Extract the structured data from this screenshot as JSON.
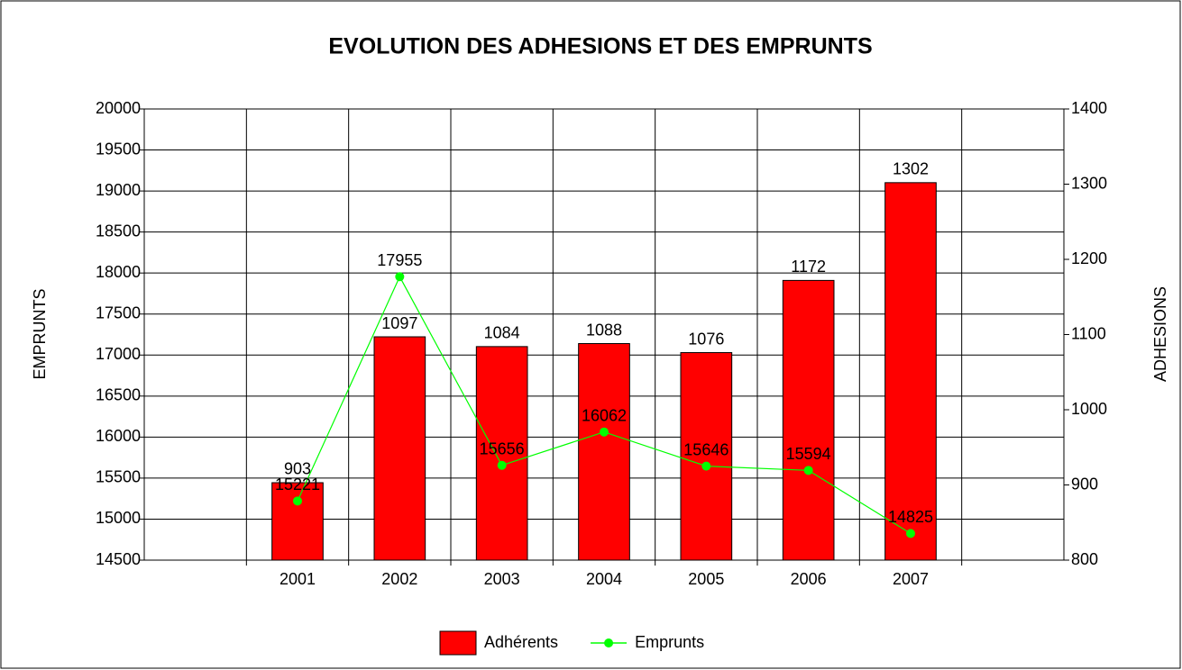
{
  "chart_data": {
    "type": "bar",
    "title": "EVOLUTION DES ADHESIONS ET DES EMPRUNTS",
    "y_label": "EMPRUNTS",
    "y2_label": "ADHESIONS",
    "categories": [
      null,
      "2001",
      "2002",
      "2003",
      "2004",
      "2005",
      "2006",
      "2007",
      null
    ],
    "series": [
      {
        "name": "Adhérents",
        "type": "bar",
        "axis": "y2",
        "color": "#ff0000",
        "values": [
          null,
          903,
          1097,
          1084,
          1088,
          1076,
          1172,
          1302,
          null
        ]
      },
      {
        "name": "Emprunts",
        "type": "line",
        "color": "#00ff00",
        "values": [
          null,
          15221,
          17955,
          15656,
          16062,
          15646,
          15594,
          14825,
          null
        ]
      }
    ],
    "ylim": [
      14500,
      20000
    ],
    "yticks": [
      14500,
      15000,
      15500,
      16000,
      16500,
      17000,
      17500,
      18000,
      18500,
      19000,
      19500,
      20000
    ],
    "y2lim": [
      800,
      1400
    ],
    "y2ticks": [
      800,
      900,
      1000,
      1100,
      1200,
      1300,
      1400
    ],
    "grid": true,
    "legend": "bottom"
  }
}
